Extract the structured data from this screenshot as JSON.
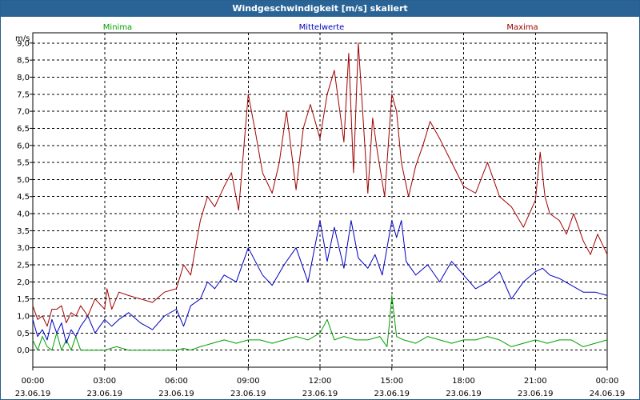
{
  "window": {
    "title": "Windgeschwindigkeit [m/s] skaliert"
  },
  "colors": {
    "minima": "#00a000",
    "mittelwerte": "#0000c0",
    "maxima": "#a00000",
    "titlebar": "#2a6496"
  },
  "chart_data": {
    "type": "line",
    "title": "Windgeschwindigkeit [m/s] skaliert",
    "ylabel": "m/s",
    "ylim": [
      -0.5,
      9.3
    ],
    "yticks": [
      "9,0",
      "8,5",
      "8,0",
      "7,5",
      "7,0",
      "6,5",
      "6,0",
      "5,5",
      "5,0",
      "4,5",
      "4,0",
      "3,5",
      "3,0",
      "2,5",
      "2,0",
      "1,5",
      "1,0",
      "0,5",
      "0,0"
    ],
    "ytick_values": [
      9.0,
      8.5,
      8.0,
      7.5,
      7.0,
      6.5,
      6.0,
      5.5,
      5.0,
      4.5,
      4.0,
      3.5,
      3.0,
      2.5,
      2.0,
      1.5,
      1.0,
      0.5,
      0.0
    ],
    "xlim": [
      0,
      24
    ],
    "xticks": [
      {
        "x": 0,
        "time": "00:00",
        "date": "23.06.19"
      },
      {
        "x": 3,
        "time": "03:00",
        "date": "23.06.19"
      },
      {
        "x": 6,
        "time": "06:00",
        "date": "23.06.19"
      },
      {
        "x": 9,
        "time": "09:00",
        "date": "23.06.19"
      },
      {
        "x": 12,
        "time": "12:00",
        "date": "23.06.19"
      },
      {
        "x": 15,
        "time": "15:00",
        "date": "23.06.19"
      },
      {
        "x": 18,
        "time": "18:00",
        "date": "23.06.19"
      },
      {
        "x": 21,
        "time": "21:00",
        "date": "23.06.19"
      },
      {
        "x": 24,
        "time": "00:00",
        "date": "24.06.19"
      }
    ],
    "legend": [
      "Minima",
      "Mittelwerte",
      "Maxima"
    ],
    "series": [
      {
        "name": "Minima",
        "color": "#00a000",
        "x": [
          0,
          0.2,
          0.4,
          0.6,
          0.8,
          1,
          1.2,
          1.4,
          1.6,
          1.8,
          2,
          2.5,
          3,
          3.5,
          4,
          4.5,
          5,
          5.5,
          6,
          6.3,
          6.6,
          7,
          7.5,
          8,
          8.5,
          9,
          9.5,
          10,
          10.5,
          11,
          11.5,
          12,
          12.3,
          12.6,
          13,
          13.5,
          14,
          14.5,
          14.8,
          14.9,
          15,
          15.2,
          15.5,
          16,
          16.5,
          17,
          17.5,
          18,
          18.5,
          19,
          19.5,
          20,
          20.5,
          21,
          21.5,
          22,
          22.5,
          23,
          23.5,
          24
        ],
        "values": [
          0.3,
          0.0,
          0.4,
          0.1,
          0.0,
          0.5,
          0.0,
          0.3,
          0.0,
          0.4,
          0.0,
          0.0,
          0.0,
          0.1,
          0.0,
          0.0,
          0.0,
          0.0,
          0.0,
          0.05,
          0.0,
          0.1,
          0.2,
          0.3,
          0.2,
          0.3,
          0.3,
          0.2,
          0.3,
          0.4,
          0.3,
          0.5,
          0.9,
          0.3,
          0.4,
          0.3,
          0.3,
          0.4,
          0.1,
          0.8,
          1.6,
          0.4,
          0.3,
          0.2,
          0.4,
          0.3,
          0.2,
          0.3,
          0.3,
          0.4,
          0.3,
          0.1,
          0.2,
          0.3,
          0.2,
          0.3,
          0.3,
          0.1,
          0.2,
          0.3
        ]
      },
      {
        "name": "Mittelwerte",
        "color": "#0000c0",
        "x": [
          0,
          0.2,
          0.4,
          0.6,
          0.8,
          1,
          1.2,
          1.4,
          1.6,
          1.8,
          2,
          2.3,
          2.6,
          3,
          3.3,
          3.6,
          4,
          4.5,
          5,
          5.5,
          6,
          6.3,
          6.6,
          7,
          7.3,
          7.6,
          8,
          8.5,
          9,
          9.3,
          9.6,
          10,
          10.5,
          11,
          11.5,
          12,
          12.3,
          12.6,
          13,
          13.3,
          13.6,
          14,
          14.3,
          14.6,
          15,
          15.2,
          15.4,
          15.6,
          16,
          16.5,
          17,
          17.5,
          18,
          18.5,
          19,
          19.5,
          20,
          20.5,
          21,
          21.3,
          21.6,
          22,
          22.5,
          23,
          23.5,
          24
        ],
        "values": [
          0.9,
          0.4,
          0.6,
          0.3,
          0.9,
          0.5,
          0.8,
          0.2,
          0.6,
          0.4,
          0.7,
          1.0,
          0.5,
          0.9,
          0.7,
          0.9,
          1.1,
          0.8,
          0.6,
          1.0,
          1.2,
          0.7,
          1.3,
          1.5,
          2.0,
          1.8,
          2.2,
          2.0,
          3.0,
          2.6,
          2.2,
          1.9,
          2.5,
          3.0,
          2.0,
          3.8,
          2.6,
          3.6,
          2.4,
          3.8,
          2.7,
          2.4,
          2.8,
          2.2,
          3.8,
          3.3,
          3.8,
          2.6,
          2.2,
          2.5,
          2.0,
          2.6,
          2.2,
          1.8,
          2.0,
          2.3,
          1.5,
          2.0,
          2.3,
          2.4,
          2.2,
          2.1,
          1.9,
          1.7,
          1.7,
          1.6
        ]
      },
      {
        "name": "Maxima",
        "color": "#a00000",
        "x": [
          0,
          0.2,
          0.4,
          0.6,
          0.8,
          1,
          1.2,
          1.4,
          1.6,
          1.8,
          2,
          2.3,
          2.6,
          3,
          3.1,
          3.3,
          3.6,
          4,
          4.5,
          5,
          5.5,
          6,
          6.3,
          6.6,
          7,
          7.3,
          7.6,
          8,
          8.3,
          8.6,
          9,
          9.3,
          9.6,
          10,
          10.3,
          10.6,
          11,
          11.3,
          11.6,
          12,
          12.3,
          12.6,
          13,
          13.2,
          13.4,
          13.6,
          14,
          14.2,
          14.4,
          14.7,
          15,
          15.2,
          15.4,
          15.7,
          16,
          16.3,
          16.6,
          17,
          17.5,
          18,
          18.5,
          19,
          19.5,
          20,
          20.5,
          21,
          21.2,
          21.4,
          21.6,
          22,
          22.3,
          22.6,
          23,
          23.3,
          23.6,
          24
        ],
        "values": [
          1.3,
          0.9,
          1.0,
          0.7,
          1.2,
          1.2,
          1.3,
          0.8,
          1.1,
          1.0,
          1.3,
          1.0,
          1.5,
          1.2,
          1.8,
          1.2,
          1.7,
          1.6,
          1.5,
          1.4,
          1.7,
          1.8,
          2.5,
          2.2,
          3.8,
          4.5,
          4.2,
          4.8,
          5.2,
          4.1,
          7.5,
          6.4,
          5.2,
          4.6,
          5.5,
          7.0,
          4.7,
          6.5,
          7.2,
          6.2,
          7.5,
          8.2,
          6.1,
          8.7,
          5.2,
          9.0,
          4.6,
          6.8,
          5.8,
          4.5,
          7.5,
          7.0,
          5.5,
          4.5,
          5.4,
          6.0,
          6.7,
          6.2,
          5.5,
          4.8,
          4.6,
          5.5,
          4.5,
          4.2,
          3.6,
          4.4,
          5.8,
          4.5,
          4.0,
          3.8,
          3.4,
          4.0,
          3.2,
          2.8,
          3.4,
          2.8
        ]
      }
    ]
  }
}
